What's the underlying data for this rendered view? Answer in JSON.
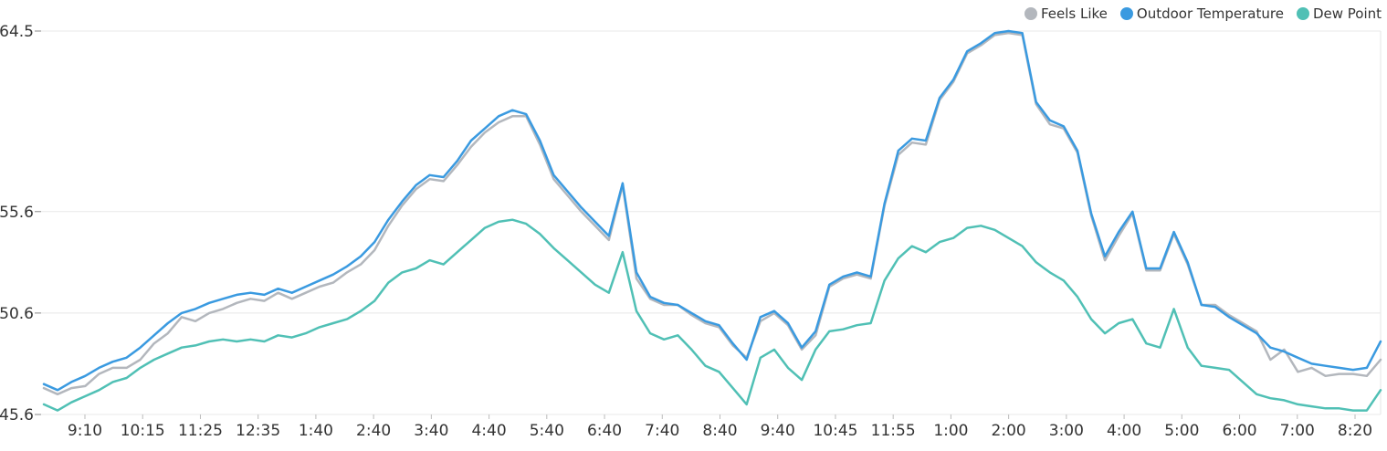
{
  "chart_data": {
    "type": "line",
    "title": "",
    "xlabel": "",
    "ylabel": "",
    "x_tick_labels": [
      "9:10",
      "10:15",
      "11:25",
      "12:35",
      "1:40",
      "2:40",
      "3:40",
      "4:40",
      "5:40",
      "6:40",
      "7:40",
      "8:40",
      "9:40",
      "10:45",
      "11:55",
      "1:00",
      "2:00",
      "3:00",
      "4:00",
      "5:00",
      "6:00",
      "7:00",
      "8:20"
    ],
    "y_ticks": [
      45.6,
      50.6,
      55.6,
      64.5
    ],
    "y_tick_labels": [
      "45.6",
      "50.6",
      "55.6",
      "64.5"
    ],
    "ylim": [
      45.6,
      64.5
    ],
    "legend_position": "top-right",
    "grid": true,
    "series": [
      {
        "name": "Feels Like",
        "color": "#b3b7bd",
        "values": [
          46.9,
          46.6,
          46.9,
          47.0,
          47.6,
          47.9,
          47.9,
          48.3,
          49.1,
          49.6,
          50.4,
          50.2,
          50.6,
          50.8,
          51.1,
          51.3,
          51.2,
          51.6,
          51.3,
          51.6,
          51.9,
          52.1,
          52.6,
          53.0,
          53.7,
          54.9,
          55.9,
          56.7,
          57.2,
          57.1,
          57.9,
          58.8,
          59.5,
          60.0,
          60.3,
          60.3,
          58.9,
          57.2,
          56.4,
          55.6,
          54.9,
          54.2,
          56.9,
          52.3,
          51.3,
          51.0,
          51.0,
          50.5,
          50.1,
          49.9,
          49.0,
          48.4,
          50.2,
          50.6,
          50.0,
          48.8,
          49.5,
          51.9,
          52.3,
          52.5,
          52.3,
          55.9,
          58.4,
          59.0,
          58.9,
          61.1,
          62.0,
          63.4,
          63.8,
          64.3,
          64.4,
          64.3,
          60.9,
          59.9,
          59.7,
          58.5,
          55.4,
          53.2,
          54.4,
          55.5,
          52.7,
          52.7,
          54.5,
          53.0,
          51.0,
          51.0,
          50.5,
          50.1,
          49.7,
          48.3,
          48.8,
          47.7,
          47.9,
          47.5,
          47.6,
          47.6,
          47.5,
          48.3
        ]
      },
      {
        "name": "Outdoor Temperature",
        "color": "#3a9ae0",
        "values": [
          47.1,
          46.8,
          47.2,
          47.5,
          47.9,
          48.2,
          48.4,
          48.9,
          49.5,
          50.1,
          50.6,
          50.8,
          51.1,
          51.3,
          51.5,
          51.6,
          51.5,
          51.8,
          51.6,
          51.9,
          52.2,
          52.5,
          52.9,
          53.4,
          54.1,
          55.2,
          56.1,
          56.9,
          57.4,
          57.3,
          58.1,
          59.1,
          59.7,
          60.3,
          60.6,
          60.4,
          59.1,
          57.4,
          56.6,
          55.8,
          55.1,
          54.4,
          57.0,
          52.6,
          51.4,
          51.1,
          51.0,
          50.6,
          50.2,
          50.0,
          49.1,
          48.3,
          50.4,
          50.7,
          50.1,
          48.9,
          49.7,
          52.0,
          52.4,
          52.6,
          52.4,
          56.0,
          58.6,
          59.2,
          59.1,
          61.2,
          62.1,
          63.5,
          63.9,
          64.4,
          64.5,
          64.4,
          61.0,
          60.1,
          59.8,
          58.6,
          55.5,
          53.4,
          54.6,
          55.6,
          52.8,
          52.8,
          54.6,
          53.1,
          51.0,
          50.9,
          50.4,
          50.0,
          49.6,
          48.9,
          48.7,
          48.4,
          48.1,
          48.0,
          47.9,
          47.8,
          47.9,
          49.2
        ]
      },
      {
        "name": "Dew Point",
        "color": "#50c0b5",
        "values": [
          46.1,
          45.8,
          46.2,
          46.5,
          46.8,
          47.2,
          47.4,
          47.9,
          48.3,
          48.6,
          48.9,
          49.0,
          49.2,
          49.3,
          49.2,
          49.3,
          49.2,
          49.5,
          49.4,
          49.6,
          49.9,
          50.1,
          50.3,
          50.7,
          51.2,
          52.1,
          52.6,
          52.8,
          53.2,
          53.0,
          53.6,
          54.2,
          54.8,
          55.1,
          55.2,
          55.0,
          54.5,
          53.8,
          53.2,
          52.6,
          52.0,
          51.6,
          53.6,
          50.7,
          49.6,
          49.3,
          49.5,
          48.8,
          48.0,
          47.7,
          46.9,
          46.1,
          48.4,
          48.8,
          47.9,
          47.3,
          48.8,
          49.7,
          49.8,
          50.0,
          50.1,
          52.2,
          53.3,
          53.9,
          53.6,
          54.1,
          54.3,
          54.8,
          54.9,
          54.7,
          54.3,
          53.9,
          53.1,
          52.6,
          52.2,
          51.4,
          50.3,
          49.6,
          50.1,
          50.3,
          49.1,
          48.9,
          50.8,
          48.9,
          48.0,
          47.9,
          47.8,
          47.2,
          46.6,
          46.4,
          46.3,
          46.1,
          46.0,
          45.9,
          45.9,
          45.8,
          45.8,
          46.8
        ]
      }
    ]
  }
}
